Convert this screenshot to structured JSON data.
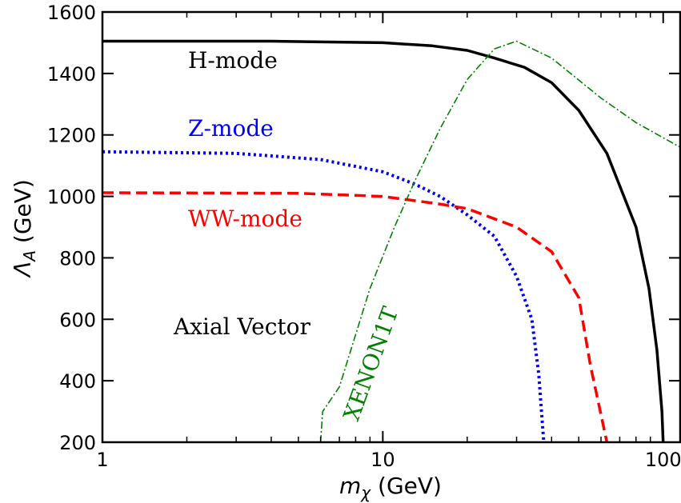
{
  "chart_data": {
    "type": "line",
    "xlabel_symbol": "m",
    "xlabel_sub": "χ",
    "xlabel_unit": " (GeV)",
    "ylabel_symbol": "Λ",
    "ylabel_sub": "A",
    "ylabel_unit": " (GeV)",
    "xscale": "log",
    "xlim": [
      1,
      115
    ],
    "ylim": [
      200,
      1600
    ],
    "x_ticks": [
      {
        "value": 1,
        "label": "1"
      },
      {
        "value": 10,
        "label": "10"
      },
      {
        "value": 100,
        "label": "100"
      }
    ],
    "y_ticks": [
      {
        "value": 200,
        "label": "200"
      },
      {
        "value": 400,
        "label": "400"
      },
      {
        "value": 600,
        "label": "600"
      },
      {
        "value": 800,
        "label": "800"
      },
      {
        "value": 1000,
        "label": "1000"
      },
      {
        "value": 1200,
        "label": "1200"
      },
      {
        "value": 1400,
        "label": "1400"
      },
      {
        "value": 1600,
        "label": "1600"
      }
    ],
    "series": [
      {
        "name": "H-mode",
        "color": "#000000",
        "style": "solid",
        "points": [
          [
            1,
            1505
          ],
          [
            4,
            1505
          ],
          [
            10,
            1500
          ],
          [
            15,
            1490
          ],
          [
            20,
            1475
          ],
          [
            25,
            1450
          ],
          [
            32,
            1420
          ],
          [
            40,
            1370
          ],
          [
            50,
            1280
          ],
          [
            63,
            1140
          ],
          [
            80,
            900
          ],
          [
            89,
            700
          ],
          [
            95,
            500
          ],
          [
            99,
            300
          ],
          [
            100,
            200
          ]
        ]
      },
      {
        "name": "Z-mode",
        "color": "#0000ff",
        "style": "dotted",
        "points": [
          [
            1,
            1145
          ],
          [
            3,
            1140
          ],
          [
            6,
            1120
          ],
          [
            10,
            1080
          ],
          [
            13,
            1040
          ],
          [
            16,
            1000
          ],
          [
            20,
            940
          ],
          [
            25,
            870
          ],
          [
            30,
            740
          ],
          [
            34,
            600
          ],
          [
            36,
            420
          ],
          [
            37.5,
            200
          ]
        ]
      },
      {
        "name": "WW-mode",
        "color": "#ff0000",
        "style": "dashed",
        "points": [
          [
            1,
            1012
          ],
          [
            5,
            1010
          ],
          [
            10,
            1000
          ],
          [
            16,
            975
          ],
          [
            20,
            960
          ],
          [
            30,
            900
          ],
          [
            40,
            820
          ],
          [
            50,
            670
          ],
          [
            55,
            450
          ],
          [
            63,
            200
          ]
        ]
      },
      {
        "name": "XENON1T",
        "color": "#008000",
        "style": "dashdot",
        "points": [
          [
            6,
            200
          ],
          [
            6.1,
            300
          ],
          [
            7,
            380
          ],
          [
            8,
            550
          ],
          [
            9,
            700
          ],
          [
            11,
            900
          ],
          [
            13,
            1050
          ],
          [
            16,
            1220
          ],
          [
            20,
            1380
          ],
          [
            25,
            1480
          ],
          [
            30,
            1505
          ],
          [
            40,
            1450
          ],
          [
            60,
            1320
          ],
          [
            80,
            1240
          ],
          [
            115,
            1160
          ]
        ]
      }
    ],
    "annotations": [
      {
        "text": "H-mode",
        "color": "#000000"
      },
      {
        "text": "Z-mode",
        "color": "#0000ff"
      },
      {
        "text": "WW-mode",
        "color": "#ff0000"
      },
      {
        "text": "XENON1T",
        "color": "#008000"
      },
      {
        "text": "Axial Vector",
        "color": "#000000"
      }
    ]
  }
}
